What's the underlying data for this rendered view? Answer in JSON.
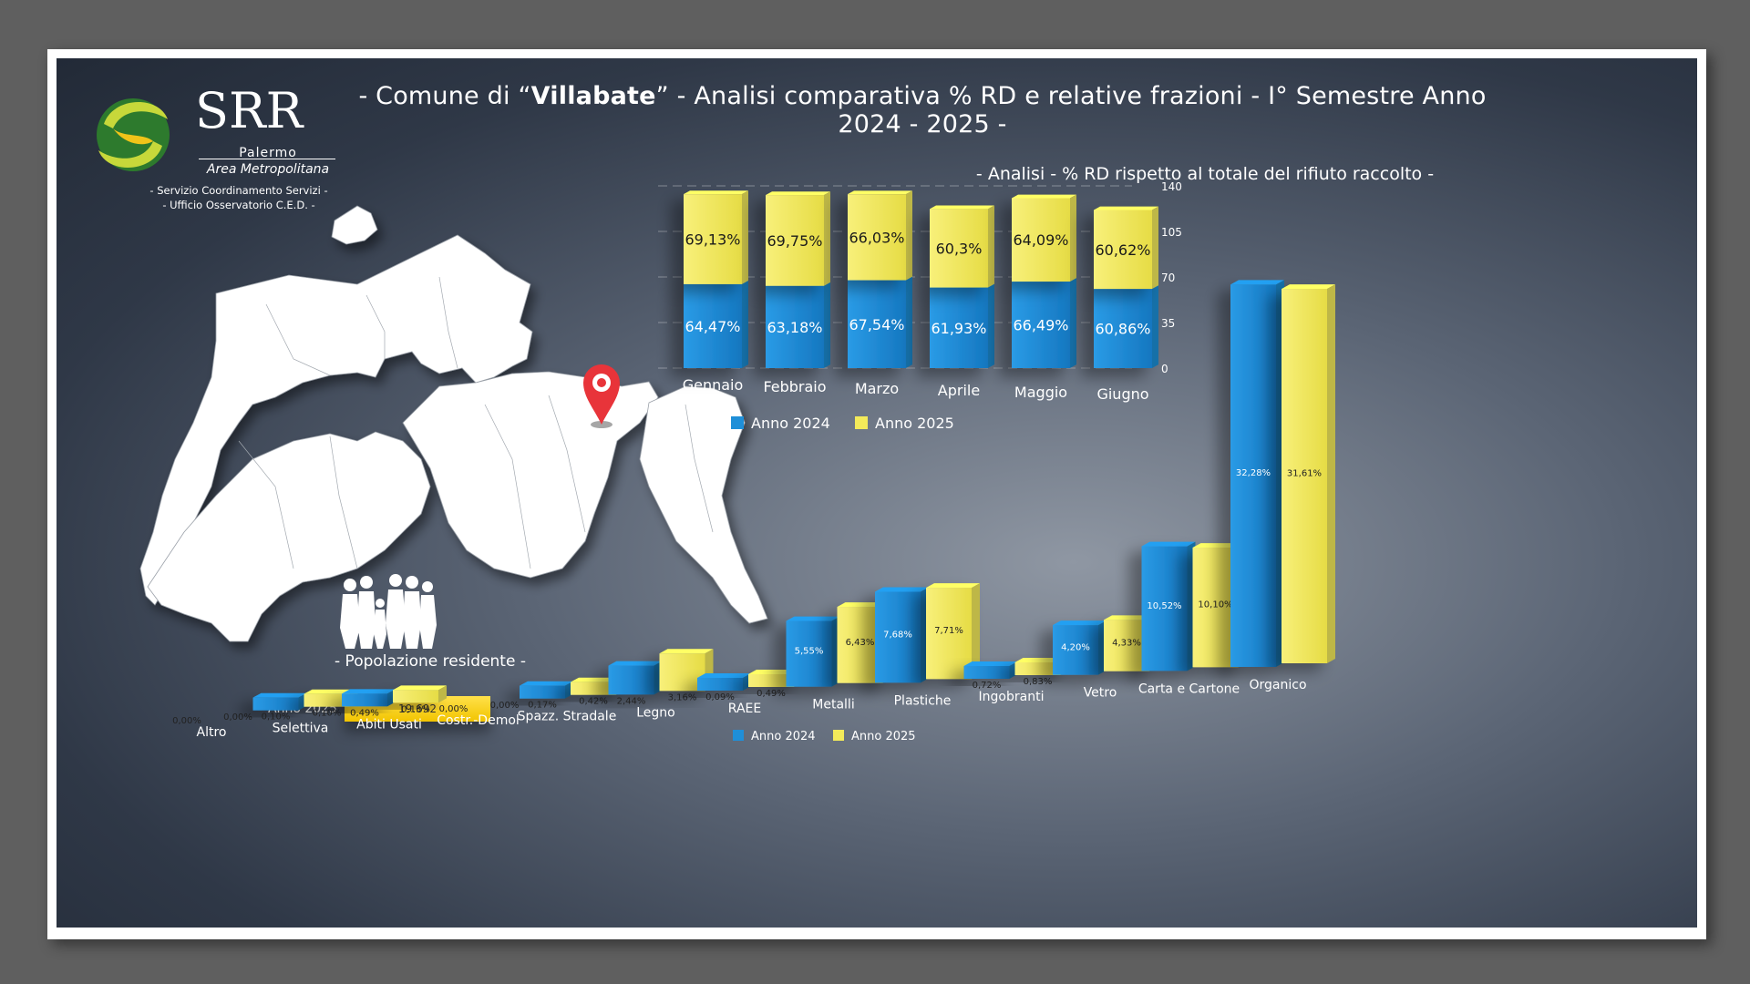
{
  "header": {
    "title_prefix": "- Comune di “",
    "title_city": "Villabate",
    "title_suffix": "” - Analisi comparativa % RD e relative frazioni - I° Semestre Anno 2024 - 2025 -"
  },
  "logo": {
    "name": "SRR",
    "line1": "Palermo",
    "line2": "Area Metropolitana",
    "service1": "- Servizio Coordinamento Servizi -",
    "service2": "- Ufficio Osservatorio C.E.D. -"
  },
  "population": {
    "label": "- Popolazione residente -",
    "year": "Anno 2025",
    "value": "19.692"
  },
  "colors": {
    "year2024": "#1f8fd8",
    "year2025": "#f3ea5a"
  },
  "chart_data": [
    {
      "type": "bar",
      "title": "- Analisi - % RD rispetto al totale del rifiuto raccolto -",
      "stacked": true,
      "categories": [
        "Gennaio",
        "Febbraio",
        "Marzo",
        "Aprile",
        "Maggio",
        "Giugno"
      ],
      "series": [
        {
          "name": "Anno 2024",
          "values": [
            64.47,
            63.18,
            67.54,
            61.93,
            66.49,
            60.86
          ],
          "labels": [
            "64,47%",
            "63,18%",
            "67,54%",
            "61,93%",
            "66,49%",
            "60,86%"
          ]
        },
        {
          "name": "Anno 2025",
          "values": [
            69.13,
            69.75,
            66.03,
            60.3,
            64.09,
            60.62
          ],
          "labels": [
            "69,13%",
            "69,75%",
            "66,03%",
            "60,3%",
            "64,09%",
            "60,62%"
          ]
        }
      ],
      "ylim": [
        0,
        140
      ],
      "yticks": [
        0,
        35,
        70,
        105,
        140
      ],
      "grid": true,
      "legend": "bottom"
    },
    {
      "type": "bar",
      "categories": [
        "Altro",
        "Selettiva",
        "Abiti Usati",
        "Costr.-Demol",
        "Spazz. Stradale",
        "Legno",
        "RAEE",
        "Metalli",
        "Plastiche",
        "Ingobranti",
        "Vetro",
        "Carta e Cartone",
        "Organico"
      ],
      "series": [
        {
          "name": "Anno 2024",
          "values": [
            0.0,
            0.1,
            0.49,
            0.0,
            0.17,
            2.44,
            0.09,
            5.55,
            7.68,
            0.72,
            4.2,
            10.52,
            32.28
          ],
          "labels": [
            "0,00%",
            "0,10%",
            "0,49%",
            "0,00%",
            "0,17%",
            "2,44%",
            "0,09%",
            "5,55%",
            "7,68%",
            "0,72%",
            "4,20%",
            "10,52%",
            "32,28%"
          ]
        },
        {
          "name": "Anno 2025",
          "values": [
            0.0,
            0.1,
            0.13,
            0.0,
            0.42,
            3.16,
            0.49,
            6.43,
            7.71,
            0.83,
            4.33,
            10.1,
            31.61
          ],
          "labels": [
            "0,00%",
            "0,10%",
            "0,13%",
            "0,00%",
            "0,42%",
            "3,16%",
            "0,49%",
            "6,43%",
            "7,71%",
            "0,83%",
            "4,33%",
            "10,10%",
            "31,61%"
          ]
        }
      ],
      "legend": "bottom"
    }
  ]
}
